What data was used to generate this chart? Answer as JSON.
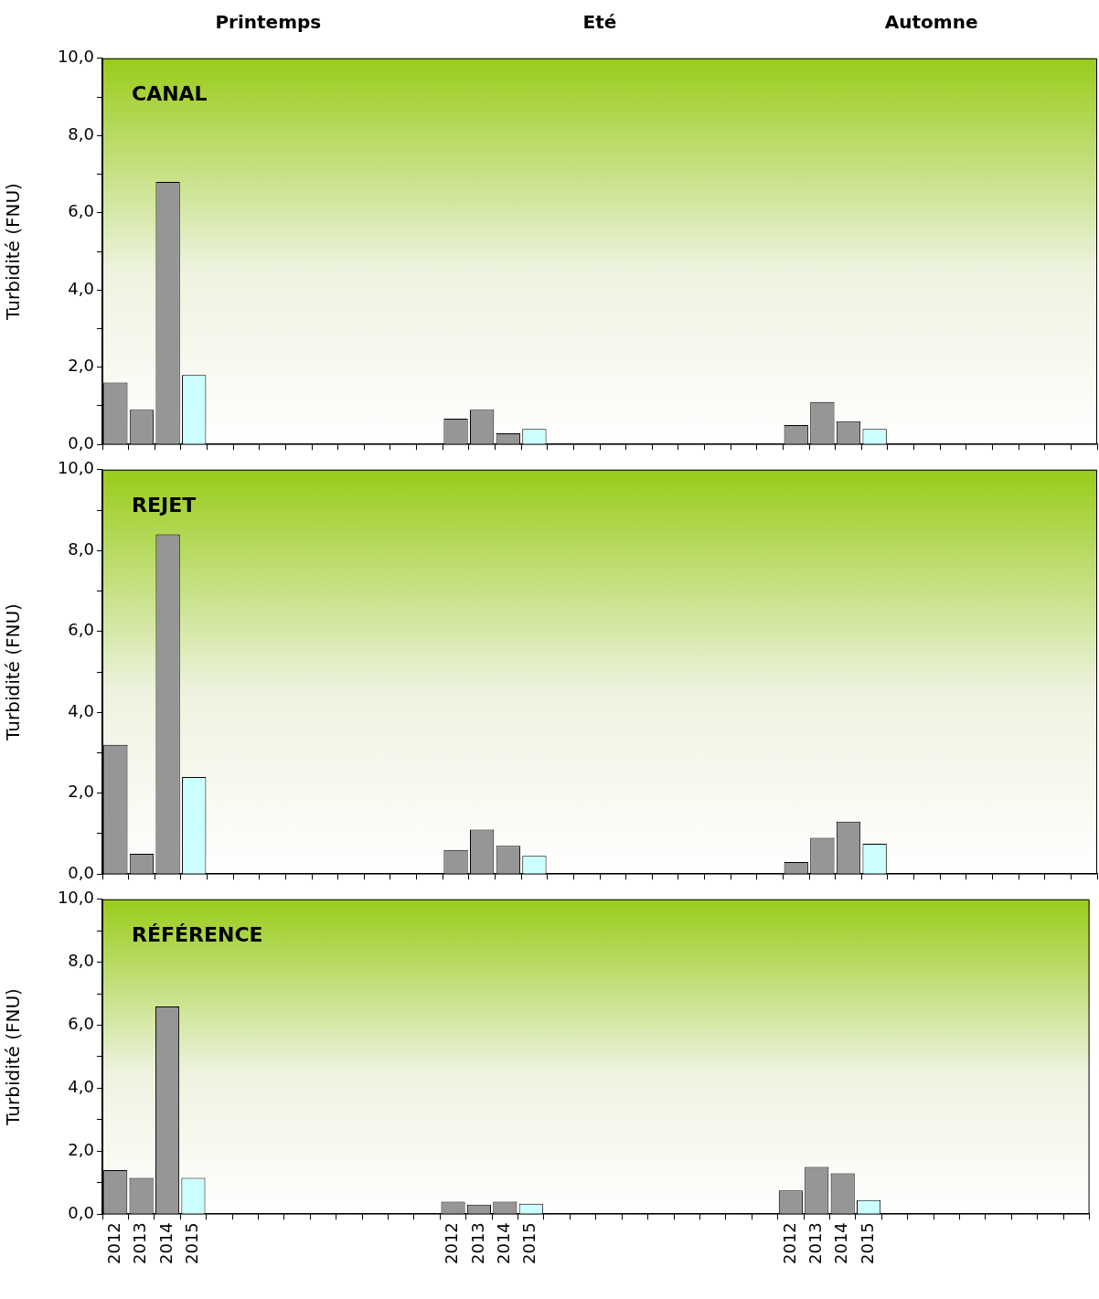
{
  "chart_data": [
    {
      "type": "bar",
      "title": "CANAL",
      "ylabel": "Turbidité (FNU)",
      "annotations": [
        "Printemps",
        "Eté",
        "Automne"
      ],
      "categories": [
        "2012",
        "2013",
        "2014",
        "2015",
        null,
        null,
        null,
        null,
        null,
        null,
        null,
        null,
        null,
        "2012",
        "2013",
        "2014",
        "2015",
        null,
        null,
        null,
        null,
        null,
        null,
        null,
        null,
        null,
        "2012",
        "2013",
        "2014",
        "2015",
        null,
        null,
        null,
        null,
        null,
        null,
        null,
        null
      ],
      "values": [
        1.6,
        0.9,
        6.8,
        1.8,
        null,
        null,
        null,
        null,
        null,
        null,
        null,
        null,
        null,
        0.67,
        0.9,
        0.29,
        0.4,
        null,
        null,
        null,
        null,
        null,
        null,
        null,
        null,
        null,
        0.5,
        1.1,
        0.6,
        0.4,
        null,
        null,
        null,
        null,
        null,
        null,
        null,
        null
      ],
      "colors": [
        "#969696",
        "#969696",
        "#969696",
        "#ccffff",
        null,
        null,
        null,
        null,
        null,
        null,
        null,
        null,
        null,
        "#969696",
        "#969696",
        "#969696",
        "#ccffff",
        null,
        null,
        null,
        null,
        null,
        null,
        null,
        null,
        null,
        "#969696",
        "#969696",
        "#969696",
        "#ccffff",
        null,
        null,
        null,
        null,
        null,
        null,
        null,
        null
      ],
      "ylim": [
        0,
        10
      ],
      "yticks": [
        {
          "value": 0,
          "label": "0,0"
        },
        {
          "value": 1,
          "label": null
        },
        {
          "value": 2,
          "label": "2,0"
        },
        {
          "value": 3,
          "label": null
        },
        {
          "value": 4,
          "label": "4,0"
        },
        {
          "value": 5,
          "label": null
        },
        {
          "value": 6,
          "label": "6,0"
        },
        {
          "value": 7,
          "label": null
        },
        {
          "value": 8,
          "label": "8,0"
        },
        {
          "value": 9,
          "label": null
        },
        {
          "value": 10,
          "label": "10,0"
        }
      ],
      "tick_labels": "y",
      "grid": false,
      "legend": false
    },
    {
      "type": "bar",
      "title": "REJET",
      "ylabel": "Turbidité (FNU)",
      "categories": [
        "2012",
        "2013",
        "2014",
        "2015",
        null,
        null,
        null,
        null,
        null,
        null,
        null,
        null,
        null,
        "2012",
        "2013",
        "2014",
        "2015",
        null,
        null,
        null,
        null,
        null,
        null,
        null,
        null,
        null,
        "2012",
        "2013",
        "2014",
        "2015",
        null,
        null,
        null,
        null,
        null,
        null,
        null,
        null
      ],
      "values": [
        3.2,
        0.5,
        8.4,
        2.4,
        null,
        null,
        null,
        null,
        null,
        null,
        null,
        null,
        null,
        0.6,
        1.1,
        0.7,
        0.45,
        null,
        null,
        null,
        null,
        null,
        null,
        null,
        null,
        null,
        0.3,
        0.9,
        1.3,
        0.75,
        null,
        null,
        null,
        null,
        null,
        null,
        null,
        null
      ],
      "colors": [
        "#969696",
        "#969696",
        "#969696",
        "#ccffff",
        null,
        null,
        null,
        null,
        null,
        null,
        null,
        null,
        null,
        "#969696",
        "#969696",
        "#969696",
        "#ccffff",
        null,
        null,
        null,
        null,
        null,
        null,
        null,
        null,
        null,
        "#969696",
        "#969696",
        "#969696",
        "#ccffff",
        null,
        null,
        null,
        null,
        null,
        null,
        null,
        null
      ],
      "ylim": [
        0,
        10
      ],
      "yticks": [
        {
          "value": 0,
          "label": "0,0"
        },
        {
          "value": 1,
          "label": null
        },
        {
          "value": 2,
          "label": "2,0"
        },
        {
          "value": 3,
          "label": null
        },
        {
          "value": 4,
          "label": "4,0"
        },
        {
          "value": 5,
          "label": null
        },
        {
          "value": 6,
          "label": "6,0"
        },
        {
          "value": 7,
          "label": null
        },
        {
          "value": 8,
          "label": "8,0"
        },
        {
          "value": 9,
          "label": null
        },
        {
          "value": 10,
          "label": "10,0"
        }
      ],
      "tick_labels": "y",
      "grid": false,
      "legend": false
    },
    {
      "type": "bar",
      "title": "RÉFÉRENCE",
      "ylabel": "Turbidité (FNU)",
      "categories": [
        "2012",
        "2013",
        "2014",
        "2015",
        null,
        null,
        null,
        null,
        null,
        null,
        null,
        null,
        null,
        "2012",
        "2013",
        "2014",
        "2015",
        null,
        null,
        null,
        null,
        null,
        null,
        null,
        null,
        null,
        "2012",
        "2013",
        "2014",
        "2015",
        null,
        null,
        null,
        null,
        null,
        null,
        null,
        null
      ],
      "values": [
        1.4,
        1.15,
        6.6,
        1.15,
        null,
        null,
        null,
        null,
        null,
        null,
        null,
        null,
        null,
        0.4,
        0.3,
        0.4,
        0.33,
        null,
        null,
        null,
        null,
        null,
        null,
        null,
        null,
        null,
        0.75,
        1.5,
        1.3,
        0.45,
        null,
        null,
        null,
        null,
        null,
        null,
        null,
        null
      ],
      "colors": [
        "#969696",
        "#969696",
        "#969696",
        "#ccffff",
        null,
        null,
        null,
        null,
        null,
        null,
        null,
        null,
        null,
        "#969696",
        "#969696",
        "#969696",
        "#ccffff",
        null,
        null,
        null,
        null,
        null,
        null,
        null,
        null,
        null,
        "#969696",
        "#969696",
        "#969696",
        "#ccffff",
        null,
        null,
        null,
        null,
        null,
        null,
        null,
        null
      ],
      "ylim": [
        0,
        10
      ],
      "yticks": [
        {
          "value": 0,
          "label": "0,0"
        },
        {
          "value": 1,
          "label": null
        },
        {
          "value": 2,
          "label": "2,0"
        },
        {
          "value": 3,
          "label": null
        },
        {
          "value": 4,
          "label": "4,0"
        },
        {
          "value": 5,
          "label": null
        },
        {
          "value": 6,
          "label": "6,0"
        },
        {
          "value": 7,
          "label": null
        },
        {
          "value": 8,
          "label": "8,0"
        },
        {
          "value": 9,
          "label": null
        },
        {
          "value": 10,
          "label": "10,0"
        }
      ],
      "grid": false,
      "legend": false
    }
  ]
}
